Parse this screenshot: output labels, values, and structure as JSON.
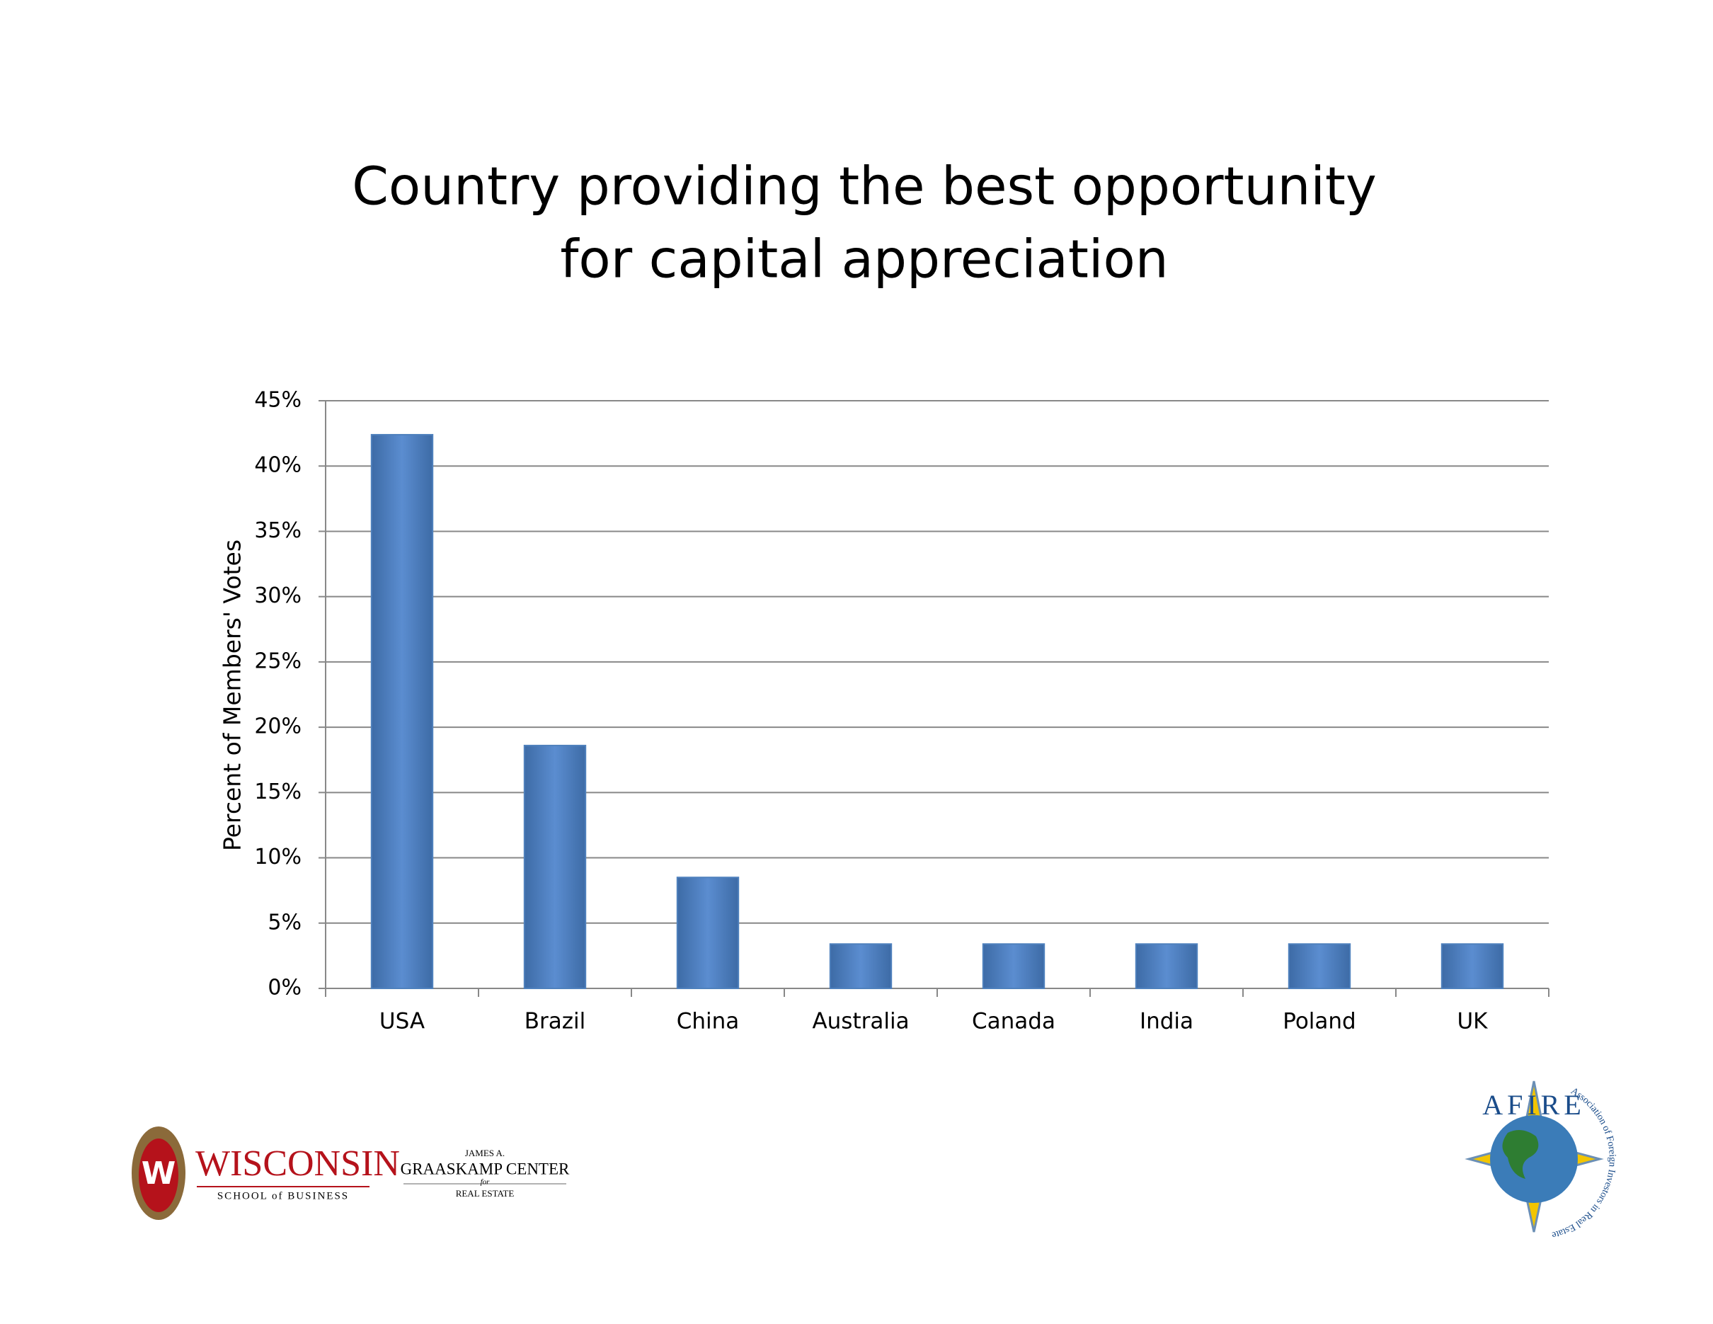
{
  "chart_data": {
    "type": "bar",
    "title": [
      "Country providing the best opportunity",
      "for capital appreciation"
    ],
    "y_label": "Percent of Members' Votes",
    "categories": [
      "USA",
      "Brazil",
      "China",
      "Australia",
      "Canada",
      "India",
      "Poland",
      "UK"
    ],
    "values": [
      42.4,
      18.6,
      8.5,
      3.4,
      3.4,
      3.4,
      3.4,
      3.4
    ],
    "color": "#4f81bd",
    "ylim": [
      0,
      45
    ],
    "yticks": [
      {
        "value": 0,
        "label": "0%"
      },
      {
        "value": 5,
        "label": "5%"
      },
      {
        "value": 10,
        "label": "10%"
      },
      {
        "value": 15,
        "label": "15%"
      },
      {
        "value": 20,
        "label": "20%"
      },
      {
        "value": 25,
        "label": "25%"
      },
      {
        "value": 30,
        "label": "30%"
      },
      {
        "value": 35,
        "label": "35%"
      },
      {
        "value": 40,
        "label": "40%"
      },
      {
        "value": 45,
        "label": "45%"
      }
    ],
    "grid": true
  },
  "logos": {
    "wisconsin": {
      "name": "WISCONSIN",
      "school": "SCHOOL of BUSINESS"
    },
    "graaskamp": {
      "line1": "JAMES A.",
      "line2": "GRAASKAMP CENTER",
      "line3": "for",
      "line4": "REAL ESTATE"
    },
    "afire": {
      "name": "AFIRE",
      "full": "Association of Foreign Investors in Real Estate"
    }
  }
}
